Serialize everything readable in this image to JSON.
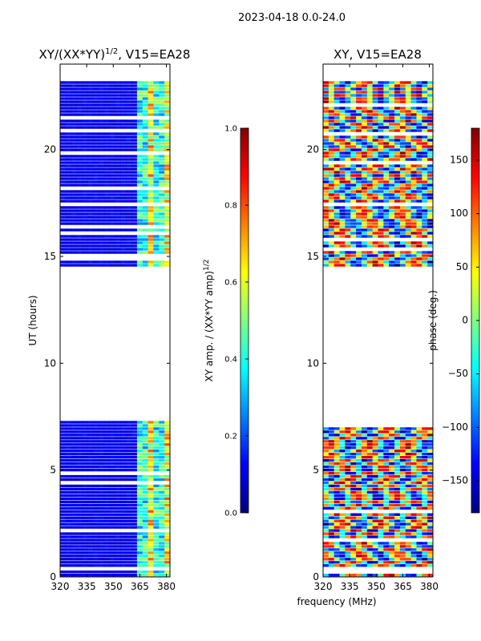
{
  "suptitle": "2023-04-18 0.0-24.0",
  "colors": {
    "jet": [
      "#00007f",
      "#0000ff",
      "#007fff",
      "#00ffff",
      "#7fff7f",
      "#ffff00",
      "#ff7f00",
      "#ff0000",
      "#7f0000"
    ]
  },
  "chart_data": [
    {
      "type": "heatmap",
      "title": "XY/(XX*YY)^1/2, V15=EA28",
      "title_main": "XY/(XX*YY)",
      "title_sup": "1/2",
      "title_rest": ", V15=EA28",
      "xlabel": "",
      "ylabel": "UT (hours)",
      "xlim": [
        320,
        382
      ],
      "ylim": [
        0,
        24
      ],
      "xticks": [
        320,
        335,
        350,
        365,
        380
      ],
      "yticks": [
        0,
        5,
        10,
        15,
        20
      ],
      "data_bands_hours": [
        [
          0.0,
          7.3
        ],
        [
          14.5,
          23.2
        ]
      ],
      "colorbar": {
        "label": "XY amp. / (XX*YY amp)^1/2",
        "label_main": "XY amp. / (XX*YY amp)",
        "label_sup": "1/2",
        "range": [
          0.0,
          1.0
        ],
        "ticks": [
          "0.0",
          "0.2",
          "0.4",
          "0.6",
          "0.8",
          "1.0"
        ],
        "tick_values": [
          0.0,
          0.2,
          0.4,
          0.6,
          0.8,
          1.0
        ]
      }
    },
    {
      "type": "heatmap",
      "title": "XY, V15=EA28",
      "xlabel": "frequency (MHz)",
      "ylabel": "",
      "xlim": [
        320,
        382
      ],
      "ylim": [
        0,
        24
      ],
      "xticks": [
        320,
        335,
        350,
        365,
        380
      ],
      "yticks": [
        0,
        5,
        10,
        15,
        20
      ],
      "data_bands_hours": [
        [
          0.0,
          7.3
        ],
        [
          14.5,
          23.2
        ]
      ],
      "colorbar": {
        "label": "phase (deg.)",
        "range": [
          -180,
          180
        ],
        "ticks": [
          "−150",
          "−100",
          "−50",
          "0",
          "50",
          "100",
          "150"
        ],
        "tick_values": [
          -150,
          -100,
          -50,
          0,
          50,
          100,
          150
        ]
      }
    }
  ]
}
